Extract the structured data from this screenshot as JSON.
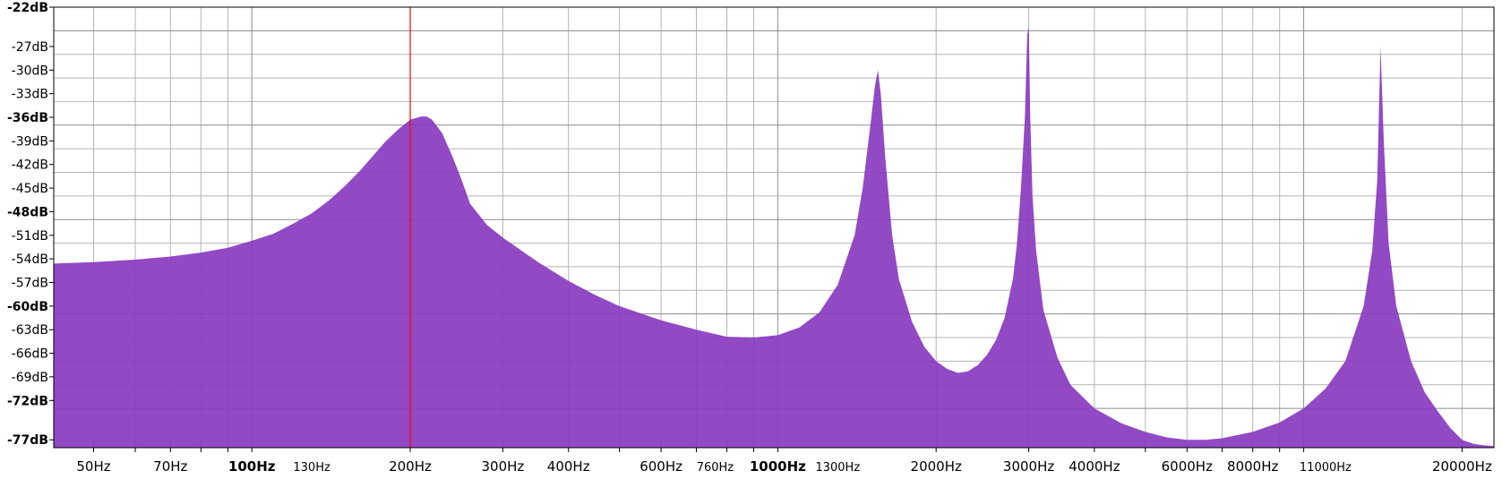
{
  "chart_data": {
    "type": "area",
    "title": "",
    "xlabel": "",
    "ylabel": "",
    "x_scale": "log",
    "xlim": [
      42,
      23000
    ],
    "ylim": [
      -78,
      -22
    ],
    "grid": true,
    "colors": {
      "fill": "#8a3bbf",
      "cursor": "#ff0000",
      "grid": "#b4b4b4",
      "grid_major": "#8c8c8c"
    },
    "cursor_hz": 200,
    "y_ticks": [
      {
        "value": -22,
        "label": "-22dB",
        "bold": true
      },
      {
        "value": -27,
        "label": "-27dB",
        "bold": false
      },
      {
        "value": -30,
        "label": "-30dB",
        "bold": false
      },
      {
        "value": -33,
        "label": "-33dB",
        "bold": false
      },
      {
        "value": -36,
        "label": "-36dB",
        "bold": true
      },
      {
        "value": -39,
        "label": "-39dB",
        "bold": false
      },
      {
        "value": -42,
        "label": "-42dB",
        "bold": false
      },
      {
        "value": -45,
        "label": "-45dB",
        "bold": false
      },
      {
        "value": -48,
        "label": "-48dB",
        "bold": true
      },
      {
        "value": -51,
        "label": "-51dB",
        "bold": false
      },
      {
        "value": -54,
        "label": "-54dB",
        "bold": false
      },
      {
        "value": -57,
        "label": "-57dB",
        "bold": false
      },
      {
        "value": -60,
        "label": "-60dB",
        "bold": true
      },
      {
        "value": -63,
        "label": "-63dB",
        "bold": false
      },
      {
        "value": -66,
        "label": "-66dB",
        "bold": false
      },
      {
        "value": -69,
        "label": "-69dB",
        "bold": false
      },
      {
        "value": -72,
        "label": "-72dB",
        "bold": true
      },
      {
        "value": -77,
        "label": "-77dB",
        "bold": true
      }
    ],
    "x_ticks": [
      {
        "value": 50,
        "label": "50Hz",
        "bold": false,
        "small": false
      },
      {
        "value": 70,
        "label": "70Hz",
        "bold": false,
        "small": false
      },
      {
        "value": 100,
        "label": "100Hz",
        "bold": true,
        "small": false
      },
      {
        "value": 130,
        "label": "130Hz",
        "bold": false,
        "small": true
      },
      {
        "value": 200,
        "label": "200Hz",
        "bold": false,
        "small": false
      },
      {
        "value": 300,
        "label": "300Hz",
        "bold": false,
        "small": false
      },
      {
        "value": 400,
        "label": "400Hz",
        "bold": false,
        "small": false
      },
      {
        "value": 600,
        "label": "600Hz",
        "bold": false,
        "small": false
      },
      {
        "value": 760,
        "label": "760Hz",
        "bold": false,
        "small": true
      },
      {
        "value": 1000,
        "label": "1000Hz",
        "bold": true,
        "small": false
      },
      {
        "value": 1300,
        "label": "1300Hz",
        "bold": false,
        "small": true
      },
      {
        "value": 2000,
        "label": "2000Hz",
        "bold": false,
        "small": false
      },
      {
        "value": 3000,
        "label": "3000Hz",
        "bold": false,
        "small": false
      },
      {
        "value": 4000,
        "label": "4000Hz",
        "bold": false,
        "small": false
      },
      {
        "value": 6000,
        "label": "6000Hz",
        "bold": false,
        "small": false
      },
      {
        "value": 8000,
        "label": "8000Hz",
        "bold": false,
        "small": false
      },
      {
        "value": 11000,
        "label": "11000Hz",
        "bold": false,
        "small": true
      },
      {
        "value": 20000,
        "label": "20000Hz",
        "bold": false,
        "small": false
      }
    ],
    "x_grid": [
      50,
      60,
      70,
      80,
      90,
      100,
      200,
      300,
      400,
      500,
      600,
      700,
      800,
      900,
      1000,
      2000,
      3000,
      4000,
      5000,
      6000,
      7000,
      8000,
      9000,
      10000,
      20000
    ],
    "x_grid_major": [
      100,
      1000,
      10000
    ],
    "y_grid": [
      -25,
      -28,
      -31,
      -34,
      -37,
      -40,
      -43,
      -46,
      -49,
      -52,
      -55,
      -58,
      -61,
      -64,
      -67,
      -70,
      -73
    ],
    "y_grid_major": [
      -25,
      -37,
      -49,
      -61,
      -73
    ],
    "series": [
      {
        "x": [
          42,
          50,
          60,
          70,
          80,
          90,
          100,
          110,
          120,
          130,
          140,
          150,
          160,
          170,
          180,
          190,
          200,
          210,
          215,
          220,
          230,
          240,
          250,
          260,
          280,
          300,
          350,
          400,
          450,
          500,
          600,
          700,
          800,
          900,
          1000,
          1100,
          1200,
          1300,
          1400,
          1450,
          1500,
          1530,
          1550,
          1570,
          1600,
          1650,
          1700,
          1800,
          1900,
          2000,
          2100,
          2200,
          2300,
          2400,
          2500,
          2600,
          2700,
          2800,
          2850,
          2900,
          2950,
          2980,
          3000,
          3020,
          3050,
          3100,
          3200,
          3400,
          3600,
          4000,
          4500,
          5000,
          5500,
          6000,
          6500,
          7000,
          8000,
          9000,
          10000,
          11000,
          12000,
          13000,
          13500,
          13800,
          14000,
          14200,
          14500,
          15000,
          16000,
          17000,
          18000,
          19000,
          20000,
          21000,
          22000,
          23000
        ],
        "values": [
          -54.6,
          -54.4,
          -54.1,
          -53.7,
          -53.2,
          -52.6,
          -51.7,
          -50.8,
          -49.5,
          -48.2,
          -46.6,
          -44.8,
          -42.9,
          -40.9,
          -39.0,
          -37.5,
          -36.3,
          -35.9,
          -35.9,
          -36.3,
          -38.0,
          -40.8,
          -43.8,
          -47.0,
          -49.7,
          -51.3,
          -54.4,
          -56.8,
          -58.6,
          -60.0,
          -61.8,
          -63.0,
          -63.9,
          -64.0,
          -63.7,
          -62.7,
          -60.8,
          -57.3,
          -51.0,
          -45.0,
          -37.0,
          -32.0,
          -30.0,
          -33.0,
          -41.0,
          -51.0,
          -56.6,
          -62.0,
          -65.2,
          -67.0,
          -68.0,
          -68.5,
          -68.3,
          -67.5,
          -66.2,
          -64.3,
          -61.5,
          -56.5,
          -52.0,
          -45.0,
          -36.0,
          -25.5,
          -24.5,
          -36.0,
          -46.0,
          -53.0,
          -60.5,
          -66.5,
          -70.0,
          -73.0,
          -74.9,
          -76.0,
          -76.7,
          -77.0,
          -77.0,
          -76.8,
          -76.0,
          -74.8,
          -73.0,
          -70.5,
          -67.0,
          -60.0,
          -53.0,
          -44.0,
          -27.0,
          -39.0,
          -52.0,
          -60.0,
          -67.0,
          -71.0,
          -73.4,
          -75.5,
          -77.0,
          -77.5,
          -77.7,
          -77.8
        ]
      }
    ]
  }
}
